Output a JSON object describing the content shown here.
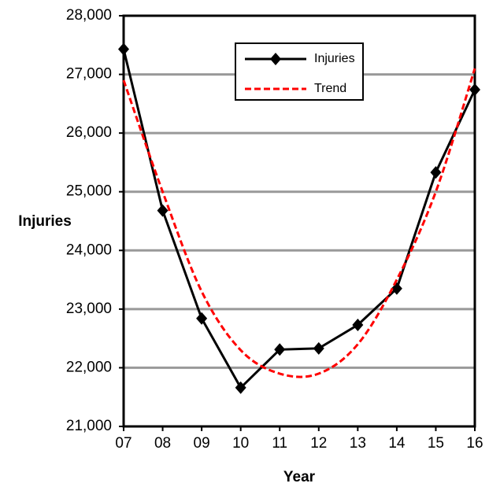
{
  "chart_data": {
    "type": "line",
    "y_label": "Injuries",
    "x_label": "Year",
    "categories": [
      "07",
      "08",
      "09",
      "10",
      "11",
      "12",
      "13",
      "14",
      "15",
      "16"
    ],
    "series": [
      {
        "name": "Injuries",
        "color": "#000000",
        "style": "solid",
        "marker": "diamond",
        "values": [
          27430,
          24680,
          22840,
          21660,
          22310,
          22330,
          22730,
          23350,
          25330,
          26740
        ]
      },
      {
        "name": "Trend",
        "color": "#ff0000",
        "style": "dashed",
        "marker": "none",
        "values": [
          26900,
          25000,
          23300,
          22300,
          21900,
          21900,
          22400,
          23500,
          25000,
          27100
        ]
      }
    ],
    "ylim": [
      21000,
      28000
    ],
    "yticks": [
      {
        "value": 21000,
        "label": "21,000"
      },
      {
        "value": 22000,
        "label": "22,000"
      },
      {
        "value": 23000,
        "label": "23,000"
      },
      {
        "value": 24000,
        "label": "24,000"
      },
      {
        "value": 25000,
        "label": "25,000"
      },
      {
        "value": 26000,
        "label": "26,000"
      },
      {
        "value": 27000,
        "label": "27,000"
      },
      {
        "value": 28000,
        "label": "28,000"
      }
    ],
    "grid": true,
    "legend": "top-center"
  }
}
